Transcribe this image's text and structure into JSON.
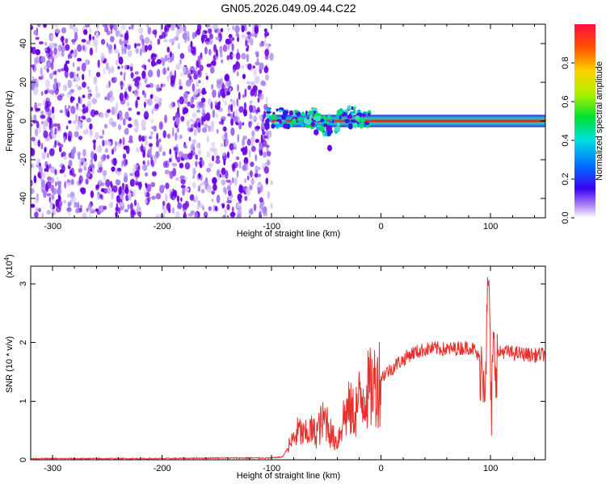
{
  "title": "GN05.2026.049.09.44.C22",
  "colors": {
    "noise": "#6a00e6",
    "noise_light": "#d6c4f5",
    "signal_line": "#e62222",
    "snr_line": "#e8302c"
  },
  "chart_data": [
    {
      "type": "heatmap",
      "name": "spectrogram",
      "xlabel": "Height of straight line (km)",
      "ylabel": "Frequency (Hz)",
      "xlim": [
        -320,
        150
      ],
      "ylim": [
        -50,
        50
      ],
      "xticks": [
        {
          "value": -300,
          "label": "-300"
        },
        {
          "value": -200,
          "label": "-200"
        },
        {
          "value": -100,
          "label": "-100"
        },
        {
          "value": 0,
          "label": "0"
        },
        {
          "value": 100,
          "label": "100"
        }
      ],
      "yticks": [
        {
          "value": 40,
          "label": "40"
        },
        {
          "value": 20,
          "label": "20"
        },
        {
          "value": 0,
          "label": "0"
        },
        {
          "value": -20,
          "label": "-20"
        },
        {
          "value": -40,
          "label": "-40"
        }
      ],
      "noise_region_km": [
        -320,
        -100
      ],
      "signal_band_hz": [
        -2,
        2
      ],
      "colorbar": {
        "label": "Normalized spectral amplitude",
        "range": [
          0.0,
          1.0
        ],
        "ticks": [
          {
            "value": 0.0,
            "label": "0.0"
          },
          {
            "value": 0.2,
            "label": "0.2"
          },
          {
            "value": 0.4,
            "label": "0.4"
          },
          {
            "value": 0.6,
            "label": "0.6"
          },
          {
            "value": 0.8,
            "label": "0.8"
          }
        ]
      }
    },
    {
      "type": "line",
      "name": "snr",
      "xlabel": "Height of straight line (km)",
      "ylabel": "SNR (10 * v/v)",
      "scale_label": "(x10",
      "scale_exponent": "4",
      "xlim": [
        -320,
        150
      ],
      "ylim": [
        0,
        3.3
      ],
      "xticks": [
        {
          "value": -300,
          "label": "-300"
        },
        {
          "value": -200,
          "label": "-200"
        },
        {
          "value": -100,
          "label": "-100"
        },
        {
          "value": 0,
          "label": "0"
        },
        {
          "value": 100,
          "label": "100"
        }
      ],
      "yticks": [
        {
          "value": 0,
          "label": "0"
        },
        {
          "value": 1,
          "label": "1"
        },
        {
          "value": 2,
          "label": "2"
        },
        {
          "value": 3,
          "label": "3"
        }
      ],
      "series": [
        {
          "name": "SNR",
          "x": [
            -320,
            -250,
            -200,
            -150,
            -100,
            -90,
            -82,
            -75,
            -70,
            -65,
            -60,
            -55,
            -50,
            -45,
            -40,
            -35,
            -30,
            -25,
            -20,
            -15,
            -10,
            -5,
            0,
            5,
            10,
            15,
            20,
            25,
            30,
            35,
            40,
            50,
            60,
            70,
            80,
            85,
            90,
            95,
            97,
            99,
            100,
            102,
            105,
            110,
            120,
            130,
            140,
            150
          ],
          "y": [
            0.02,
            0.02,
            0.02,
            0.03,
            0.03,
            0.05,
            0.3,
            0.5,
            0.4,
            0.5,
            0.45,
            0.6,
            0.7,
            0.4,
            0.3,
            0.7,
            0.85,
            0.8,
            1.0,
            1.15,
            1.2,
            1.3,
            1.4,
            1.5,
            1.55,
            1.65,
            1.7,
            1.78,
            1.83,
            1.85,
            1.88,
            1.9,
            1.88,
            1.9,
            1.92,
            1.88,
            1.7,
            1.5,
            2.5,
            3.2,
            0.5,
            1.7,
            1.75,
            1.85,
            1.82,
            1.8,
            1.78,
            1.8
          ]
        }
      ]
    }
  ]
}
